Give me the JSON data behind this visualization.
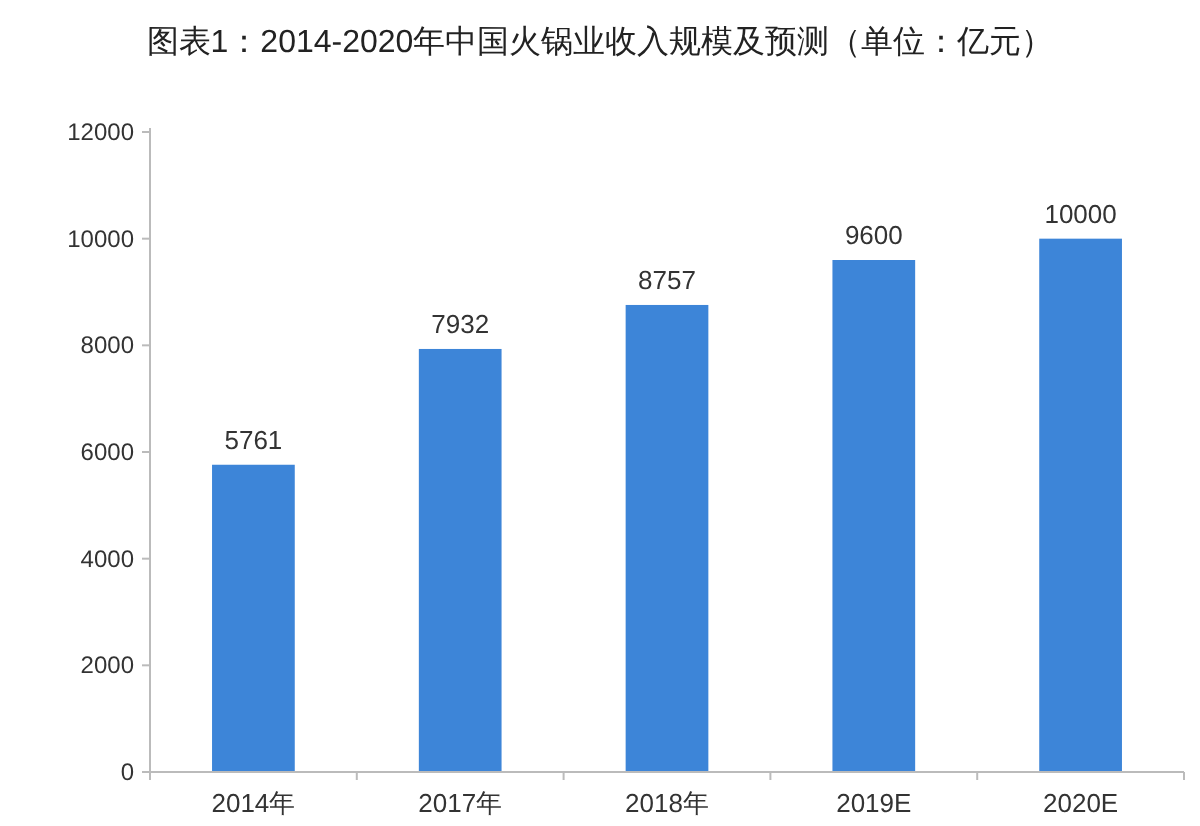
{
  "chart_data": {
    "type": "bar",
    "title": "图表1：2014-2020年中国火锅业收入规模及预测（单位：亿元）",
    "categories": [
      "2014年",
      "2017年",
      "2018年",
      "2019E",
      "2020E"
    ],
    "values": [
      5761,
      7932,
      8757,
      9600,
      10000
    ],
    "color": "#3d85d8",
    "ylim": [
      0,
      12000
    ],
    "yticks": [
      0,
      2000,
      4000,
      6000,
      8000,
      10000,
      12000
    ],
    "data_labels": true
  }
}
